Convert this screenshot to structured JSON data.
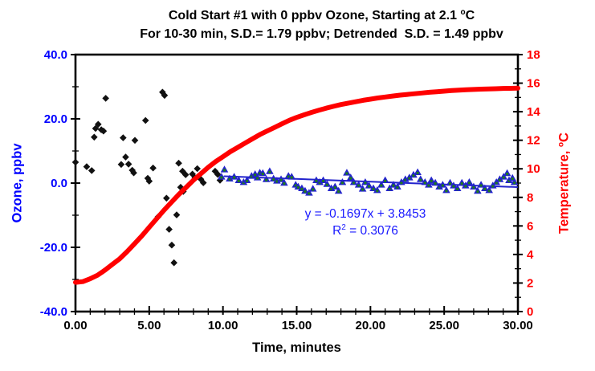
{
  "chart_data": {
    "type": "scatter",
    "title": {
      "line1_prefix": "Cold Start #1 with 0 ppbv Ozone, Starting at 2.1 ",
      "line1_sup": "o",
      "line1_suffix": "C",
      "line2": "For 10-30 min, S.D.= 1.79 ppbv; Detrended  S.D. = 1.49 ppbv"
    },
    "annotation": {
      "line1": "y = -0.1697x + 3.8453",
      "r2_prefix": "R",
      "r2_sup": "2",
      "r2_suffix": " = 0.3076"
    },
    "fit": {
      "slope": -0.1697,
      "intercept": 3.8453,
      "r_squared": 0.3076
    },
    "x_axis": {
      "label": "Time, minutes",
      "min": 0,
      "max": 30,
      "minor_step": 1,
      "major_step": 5,
      "tick_values": [
        0,
        5,
        10,
        15,
        20,
        25,
        30
      ],
      "tick_labels": [
        "0.00",
        "5.00",
        "10.00",
        "15.00",
        "20.00",
        "25.00",
        "30.00"
      ],
      "label_color": "#000000"
    },
    "y_left": {
      "label": "Ozone, ppbv",
      "min": -40,
      "max": 40,
      "minor_step": 10,
      "major_step": 20,
      "tick_values": [
        40,
        20,
        0,
        -20,
        -40
      ],
      "tick_labels": [
        "40.0",
        "20.0",
        "0.0",
        "-20.0",
        "-40.0"
      ],
      "label_color": "#0000ff"
    },
    "y_right": {
      "label_prefix": "Temperature, ",
      "label_sup": "o",
      "label_suffix": "C",
      "min": 0,
      "max": 18,
      "minor_step": 1,
      "major_step": 2,
      "tick_values": [
        18,
        16,
        14,
        12,
        10,
        8,
        6,
        4,
        2,
        0
      ],
      "tick_labels": [
        "18",
        "16",
        "14",
        "12",
        "10",
        "8",
        "6",
        "4",
        "2",
        "0"
      ],
      "label_color": "#ff0000"
    },
    "grid": false,
    "legend": false,
    "series": [
      {
        "name": "ozone-raw",
        "type": "scatter",
        "marker": "diamond",
        "axis": "left",
        "color": "#111111",
        "points": [
          [
            0.0,
            6.5
          ],
          [
            0.76,
            5.1
          ],
          [
            1.1,
            3.9
          ],
          [
            1.27,
            14.3
          ],
          [
            1.36,
            17.0
          ],
          [
            1.54,
            18.3
          ],
          [
            1.75,
            16.6
          ],
          [
            1.9,
            16.2
          ],
          [
            2.05,
            26.4
          ],
          [
            3.1,
            5.8
          ],
          [
            3.23,
            14.1
          ],
          [
            3.4,
            8.1
          ],
          [
            3.6,
            5.9
          ],
          [
            3.85,
            4.0
          ],
          [
            3.95,
            3.2
          ],
          [
            4.03,
            13.3
          ],
          [
            4.75,
            19.5
          ],
          [
            4.9,
            1.5
          ],
          [
            5.0,
            0.6
          ],
          [
            5.26,
            4.7
          ],
          [
            5.6,
            -10.5
          ],
          [
            5.9,
            28.3
          ],
          [
            6.04,
            27.3
          ],
          [
            6.17,
            -4.7
          ],
          [
            6.35,
            -14.4
          ],
          [
            6.53,
            -19.3
          ],
          [
            6.68,
            -24.8
          ],
          [
            6.86,
            -9.9
          ],
          [
            7.0,
            6.2
          ],
          [
            7.13,
            -1.3
          ],
          [
            7.26,
            3.7
          ],
          [
            7.31,
            -2.6
          ],
          [
            7.47,
            2.6
          ],
          [
            7.93,
            2.8
          ],
          [
            8.1,
            1.6
          ],
          [
            8.26,
            4.5
          ],
          [
            8.5,
            1.2
          ],
          [
            8.67,
            0.1
          ],
          [
            9.47,
            3.7
          ],
          [
            9.65,
            2.7
          ],
          [
            9.8,
            0.9
          ]
        ]
      },
      {
        "name": "temperature",
        "type": "line",
        "axis": "right",
        "color": "#ff0000",
        "width": 6,
        "points": [
          [
            0,
            2.05
          ],
          [
            0.5,
            2.1
          ],
          [
            1,
            2.3
          ],
          [
            1.5,
            2.55
          ],
          [
            2,
            2.9
          ],
          [
            2.5,
            3.3
          ],
          [
            3,
            3.7
          ],
          [
            3.5,
            4.2
          ],
          [
            4,
            4.75
          ],
          [
            4.5,
            5.3
          ],
          [
            5,
            5.9
          ],
          [
            5.5,
            6.5
          ],
          [
            6,
            7.1
          ],
          [
            6.5,
            7.65
          ],
          [
            7,
            8.2
          ],
          [
            7.5,
            8.7
          ],
          [
            8,
            9.2
          ],
          [
            8.5,
            9.65
          ],
          [
            9,
            10.1
          ],
          [
            9.5,
            10.5
          ],
          [
            10,
            10.85
          ],
          [
            10.5,
            11.2
          ],
          [
            11,
            11.5
          ],
          [
            11.5,
            11.8
          ],
          [
            12,
            12.1
          ],
          [
            12.5,
            12.4
          ],
          [
            13,
            12.65
          ],
          [
            13.5,
            12.9
          ],
          [
            14,
            13.15
          ],
          [
            14.5,
            13.4
          ],
          [
            15,
            13.6
          ],
          [
            15.5,
            13.78
          ],
          [
            16,
            13.95
          ],
          [
            16.5,
            14.1
          ],
          [
            17,
            14.25
          ],
          [
            17.5,
            14.38
          ],
          [
            18,
            14.5
          ],
          [
            18.5,
            14.6
          ],
          [
            19,
            14.7
          ],
          [
            19.5,
            14.8
          ],
          [
            20,
            14.88
          ],
          [
            20.5,
            14.96
          ],
          [
            21,
            15.03
          ],
          [
            21.5,
            15.1
          ],
          [
            22,
            15.16
          ],
          [
            22.5,
            15.21
          ],
          [
            23,
            15.26
          ],
          [
            23.5,
            15.31
          ],
          [
            24,
            15.36
          ],
          [
            24.5,
            15.4
          ],
          [
            25,
            15.44
          ],
          [
            25.5,
            15.48
          ],
          [
            26,
            15.51
          ],
          [
            26.5,
            15.54
          ],
          [
            27,
            15.56
          ],
          [
            27.5,
            15.58
          ],
          [
            28,
            15.6
          ],
          [
            28.5,
            15.61
          ],
          [
            29,
            15.63
          ],
          [
            29.5,
            15.64
          ],
          [
            30,
            15.65
          ]
        ]
      },
      {
        "name": "trend-line",
        "type": "line",
        "axis": "left",
        "color": "#2323cd",
        "width": 2,
        "points": [
          [
            10.1,
            2.13
          ],
          [
            29.95,
            -1.24
          ]
        ]
      },
      {
        "name": "ozone-detrended",
        "type": "scatter",
        "marker": "triangle",
        "axis": "left",
        "color": "#2323cd",
        "center_dot_color": "#1e7a1e",
        "points": [
          [
            9.9,
            2.0
          ],
          [
            10.1,
            4.25
          ],
          [
            10.45,
            1.4
          ],
          [
            10.76,
            2.0
          ],
          [
            11.07,
            0.9
          ],
          [
            11.4,
            0.3
          ],
          [
            11.63,
            0.9
          ],
          [
            11.94,
            2.25
          ],
          [
            12.18,
            2.8
          ],
          [
            12.34,
            1.75
          ],
          [
            12.5,
            3.25
          ],
          [
            12.7,
            3.1
          ],
          [
            12.94,
            1.2
          ],
          [
            13.17,
            3.7
          ],
          [
            13.43,
            1.4
          ],
          [
            13.66,
            0.75
          ],
          [
            13.94,
            1.2
          ],
          [
            14.15,
            0.1
          ],
          [
            14.44,
            2.25
          ],
          [
            14.66,
            2.0
          ],
          [
            14.93,
            -0.5
          ],
          [
            15.1,
            -1.1
          ],
          [
            15.35,
            -1.6
          ],
          [
            15.57,
            -2.4
          ],
          [
            15.84,
            -3.0
          ],
          [
            16.1,
            -1.75
          ],
          [
            16.33,
            0.9
          ],
          [
            16.56,
            0.3
          ],
          [
            16.8,
            0.9
          ],
          [
            17.06,
            -0.3
          ],
          [
            17.35,
            -1.6
          ],
          [
            17.6,
            -1.1
          ],
          [
            17.84,
            -2.4
          ],
          [
            18.1,
            0.3
          ],
          [
            18.4,
            3.25
          ],
          [
            18.66,
            1.75
          ],
          [
            18.87,
            0.3
          ],
          [
            19.2,
            -0.5
          ],
          [
            19.47,
            -1.75
          ],
          [
            19.65,
            0.3
          ],
          [
            19.9,
            -0.75
          ],
          [
            20.2,
            -1.6
          ],
          [
            20.46,
            -2.2
          ],
          [
            20.74,
            -0.5
          ],
          [
            21.0,
            0.9
          ],
          [
            21.3,
            -1.6
          ],
          [
            21.56,
            -0.5
          ],
          [
            21.83,
            -1.1
          ],
          [
            22.1,
            0.3
          ],
          [
            22.37,
            1.2
          ],
          [
            22.64,
            1.75
          ],
          [
            22.92,
            2.6
          ],
          [
            23.2,
            3.4
          ],
          [
            23.4,
            1.2
          ],
          [
            23.7,
            0.3
          ],
          [
            23.95,
            -0.5
          ],
          [
            24.13,
            0.9
          ],
          [
            24.4,
            0.1
          ],
          [
            24.67,
            -1.1
          ],
          [
            24.9,
            -0.5
          ],
          [
            25.15,
            -2.2
          ],
          [
            25.4,
            0.1
          ],
          [
            25.64,
            -0.75
          ],
          [
            25.9,
            -1.6
          ],
          [
            26.2,
            0.1
          ],
          [
            26.45,
            -0.75
          ],
          [
            26.7,
            0.3
          ],
          [
            27.0,
            -1.1
          ],
          [
            27.27,
            -2.4
          ],
          [
            27.5,
            -0.5
          ],
          [
            27.76,
            -1.6
          ],
          [
            28.05,
            -2.2
          ],
          [
            28.3,
            -0.75
          ],
          [
            28.54,
            0.3
          ],
          [
            28.77,
            1.2
          ],
          [
            29.03,
            2.0
          ],
          [
            29.27,
            3.1
          ],
          [
            29.4,
            0.9
          ],
          [
            29.63,
            1.6
          ],
          [
            29.76,
            0.3
          ]
        ]
      }
    ]
  }
}
